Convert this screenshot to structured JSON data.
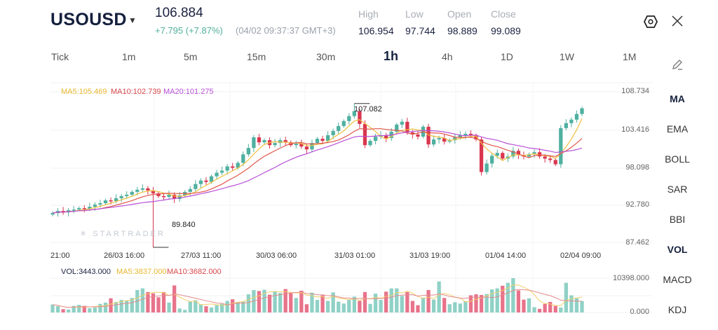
{
  "header": {
    "symbol": "USOUSD",
    "price": "106.884",
    "change": "+7.795 (+7.87%)",
    "timestamp": "(04/02 09:37:37 GMT+3)",
    "stats": [
      {
        "label": "High",
        "value": "106.954"
      },
      {
        "label": "Low",
        "value": "97.744"
      },
      {
        "label": "Open",
        "value": "98.889"
      },
      {
        "label": "Close",
        "value": "99.089"
      }
    ],
    "icons": {
      "settings": "hexagon-settings-icon",
      "close": "close-icon",
      "dropdown": "caret-down-icon",
      "draw": "pencil-icon"
    }
  },
  "timeframes": [
    "Tick",
    "1m",
    "5m",
    "15m",
    "30m",
    "1h",
    "4h",
    "1D",
    "1W",
    "1M"
  ],
  "active_timeframe": "1h",
  "indicators": [
    "MA",
    "EMA",
    "BOLL",
    "SAR",
    "BBI",
    "VOL",
    "MACD",
    "KDJ"
  ],
  "active_indicators": [
    "MA",
    "VOL"
  ],
  "watermark": "STARTRADER",
  "colors": {
    "up": "#4fb0a0",
    "down": "#d9364f",
    "ma5": "#f0c040",
    "ma10": "#e0564a",
    "ma20": "#b84fd6",
    "vol_up": "#8fd1c6",
    "vol_down": "#e8738b"
  },
  "chart_data": {
    "type": "candlestick",
    "legend": {
      "ma5": "MA5:105.469",
      "ma10": "MA10:102.739",
      "ma20": "MA20:101.275"
    },
    "y_ticks": [
      "108.734",
      "103.416",
      "98.098",
      "92.780",
      "87.462"
    ],
    "ylim": [
      87.462,
      108.734
    ],
    "x_ticks": [
      "21:00",
      "26/03 16:00",
      "27/03 11:00",
      "30/03 06:00",
      "31/03 01:00",
      "31/03 19:00",
      "01/04 14:00",
      "02/04 09:00"
    ],
    "max_label": "107.082",
    "min_label": "89.840",
    "closes": [
      91.6,
      91.9,
      91.7,
      92.0,
      92.1,
      92.3,
      92.2,
      92.5,
      92.8,
      93.0,
      93.4,
      93.3,
      93.7,
      94.0,
      94.2,
      94.6,
      94.9,
      95.1,
      94.8,
      94.4,
      94.0,
      93.9,
      94.2,
      93.6,
      94.1,
      94.6,
      95.0,
      95.7,
      96.2,
      96.0,
      96.8,
      97.3,
      97.6,
      98.2,
      98.0,
      98.7,
      99.9,
      100.8,
      102.3,
      101.6,
      101.9,
      101.2,
      101.5,
      101.9,
      101.6,
      101.2,
      101.4,
      101.0,
      100.6,
      101.5,
      102.1,
      101.8,
      102.6,
      103.2,
      103.9,
      104.6,
      105.3,
      106.0,
      104.2,
      101.2,
      101.8,
      102.4,
      102.6,
      102.2,
      103.1,
      104.1,
      104.5,
      103.0,
      102.7,
      102.4,
      103.8,
      101.3,
      102.0,
      102.2,
      101.7,
      101.9,
      102.3,
      102.6,
      102.8,
      102.6,
      102.0,
      97.4,
      98.6,
      99.7,
      100.1,
      99.3,
      99.6,
      100.4,
      99.8,
      99.6,
      99.9,
      100.2,
      99.6,
      99.3,
      99.1,
      98.5,
      103.6,
      104.3,
      104.8,
      105.6,
      106.4
    ],
    "low_index": 19,
    "low": 89.84,
    "high_index": 57,
    "high": 107.082,
    "volume": {
      "legend": {
        "vol": "VOL:3443.000",
        "ma5": "MA5:3837.000",
        "ma10": "MA10:3682.000"
      },
      "y_ticks": [
        "10398.000",
        "0.000"
      ],
      "ylim": [
        0,
        10398
      ],
      "values": [
        2400,
        1900,
        1000,
        900,
        2000,
        2300,
        2000,
        1300,
        1500,
        2600,
        3000,
        4300,
        3200,
        3800,
        3600,
        4400,
        6800,
        7300,
        6200,
        5800,
        4600,
        6200,
        3000,
        8200,
        1200,
        800,
        3300,
        3700,
        2500,
        1900,
        1500,
        2200,
        2600,
        3500,
        4000,
        3200,
        3300,
        5500,
        6800,
        6500,
        6900,
        5400,
        6300,
        5900,
        7100,
        5800,
        4400,
        6600,
        2500,
        6000,
        3800,
        5200,
        3500,
        6100,
        3300,
        2700,
        3800,
        4800,
        3500,
        6200,
        2600,
        5700,
        3800,
        6300,
        7300,
        7300,
        5000,
        6200,
        3500,
        2200,
        4500,
        6800,
        3900,
        9400,
        4400,
        2500,
        3100,
        2700,
        3400,
        5200,
        5500,
        5300,
        5600,
        7000,
        7300,
        8100,
        9000,
        10398,
        6700,
        3900,
        4300,
        1600,
        1100,
        2600,
        3200,
        2000,
        1500,
        9000,
        5200,
        4300,
        3443
      ]
    }
  }
}
